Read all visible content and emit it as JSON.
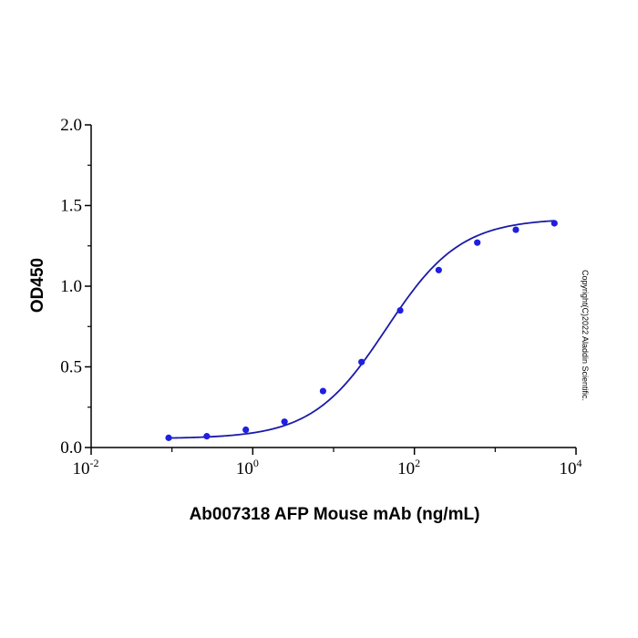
{
  "chart_data": {
    "type": "scatter",
    "xlabel": "Ab007318 AFP Mouse mAb (ng/mL)",
    "ylabel": "OD450",
    "xscale": "log10",
    "xlim": [
      0.01,
      10000
    ],
    "ylim": [
      0,
      2.0
    ],
    "x_ticks": [
      {
        "base": "10",
        "exp": "-2"
      },
      {
        "base": "10",
        "exp": "0"
      },
      {
        "base": "10",
        "exp": "2"
      },
      {
        "base": "10",
        "exp": "4"
      }
    ],
    "y_ticks": [
      "0.0",
      "0.5",
      "1.0",
      "1.5",
      "2.0"
    ],
    "grid": false,
    "legend": "none",
    "color": "#1a1aa8",
    "point_color": "#1f1fe0",
    "series": [
      {
        "points": [
          {
            "x": 0.091,
            "y": 0.06
          },
          {
            "x": 0.27,
            "y": 0.07
          },
          {
            "x": 0.82,
            "y": 0.11
          },
          {
            "x": 2.47,
            "y": 0.16
          },
          {
            "x": 7.4,
            "y": 0.35
          },
          {
            "x": 22.2,
            "y": 0.53
          },
          {
            "x": 66.7,
            "y": 0.85
          },
          {
            "x": 200,
            "y": 1.1
          },
          {
            "x": 600,
            "y": 1.27
          },
          {
            "x": 1800,
            "y": 1.35
          },
          {
            "x": 5400,
            "y": 1.39
          }
        ],
        "fit": {
          "model": "4PL",
          "bottom": 0.055,
          "top": 1.42,
          "ec50": 45,
          "hill": 0.95
        }
      }
    ],
    "annotation": "Copyright(C)2022 Aladdin Scientific."
  }
}
